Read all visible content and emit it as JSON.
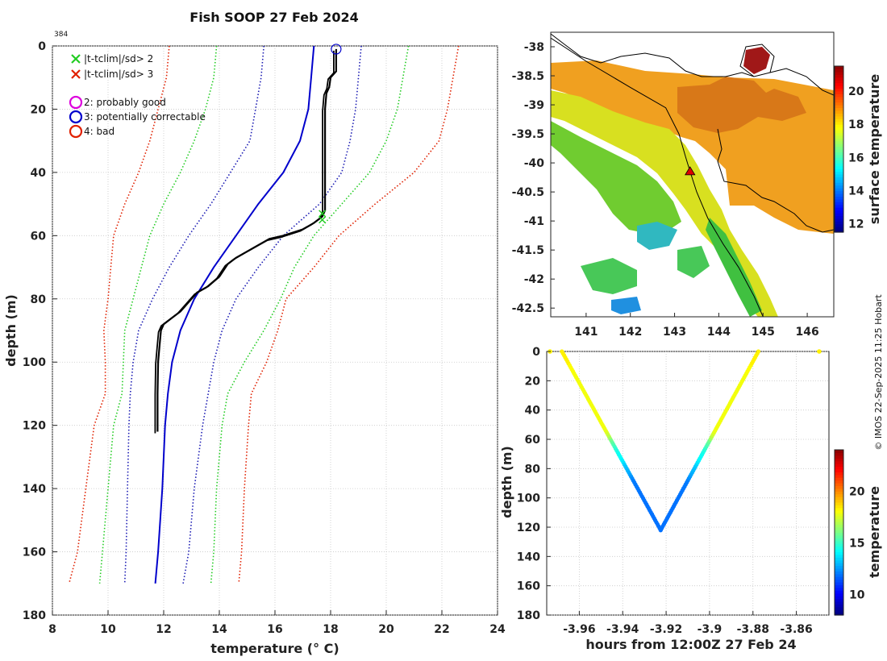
{
  "title": "Fish SOOP 27 Feb 2024",
  "profile_id": "384",
  "credit": "© IMOS 22-Sep-2025 11:25 Hobart",
  "colors": {
    "clim_mean": "#0000cc",
    "clim_2sd": "#1a1ab3",
    "clim_3sd": "#22cc22",
    "clim_4sd": "#e02000",
    "profile": "#000000"
  },
  "chart_data": [
    {
      "type": "line",
      "name": "temperature-profile",
      "xlabel": "temperature (° C)",
      "ylabel": "depth (m)",
      "xlim": [
        8,
        24
      ],
      "ylim": [
        180,
        0
      ],
      "xticks": [
        8,
        10,
        12,
        14,
        16,
        18,
        20,
        22,
        24
      ],
      "yticks": [
        0,
        20,
        40,
        60,
        80,
        100,
        120,
        140,
        160,
        180
      ],
      "legend": [
        {
          "marker": "x",
          "color": "#22cc22",
          "label": "|t-tclim|/sd> 2"
        },
        {
          "marker": "x",
          "color": "#e02000",
          "label": "|t-tclim|/sd> 3"
        },
        {
          "marker": "o",
          "color": "#dd00dd",
          "label": "2: probably good"
        },
        {
          "marker": "o",
          "color": "#0000cc",
          "label": "3: potentially correctable"
        },
        {
          "marker": "o",
          "color": "#e02000",
          "label": "4: bad"
        }
      ],
      "series": [
        {
          "name": "climatology mean",
          "style": "solid",
          "color": "#0000cc",
          "points": [
            [
              17.4,
              0
            ],
            [
              17.3,
              10
            ],
            [
              17.2,
              20
            ],
            [
              16.9,
              30
            ],
            [
              16.3,
              40
            ],
            [
              15.4,
              50
            ],
            [
              14.6,
              60
            ],
            [
              13.8,
              70
            ],
            [
              13.1,
              80
            ],
            [
              12.6,
              90
            ],
            [
              12.3,
              100
            ],
            [
              12.15,
              110
            ],
            [
              12.05,
              120
            ],
            [
              11.95,
              140
            ],
            [
              11.8,
              160
            ],
            [
              11.7,
              170
            ]
          ]
        },
        {
          "name": "mean - 1 sd",
          "style": "dotted",
          "color": "#1a1ab3",
          "points": [
            [
              15.6,
              0
            ],
            [
              15.5,
              10
            ],
            [
              15.3,
              20
            ],
            [
              15.1,
              30
            ],
            [
              14.4,
              40
            ],
            [
              13.7,
              50
            ],
            [
              12.9,
              60
            ],
            [
              12.2,
              70
            ],
            [
              11.6,
              80
            ],
            [
              11.1,
              90
            ],
            [
              10.9,
              100
            ],
            [
              10.8,
              110
            ],
            [
              10.75,
              120
            ],
            [
              10.7,
              140
            ],
            [
              10.65,
              160
            ],
            [
              10.6,
              170
            ]
          ]
        },
        {
          "name": "mean + 1 sd",
          "style": "dotted",
          "color": "#1a1ab3",
          "points": [
            [
              19.1,
              0
            ],
            [
              19.0,
              10
            ],
            [
              18.9,
              20
            ],
            [
              18.7,
              30
            ],
            [
              18.4,
              40
            ],
            [
              17.6,
              50
            ],
            [
              16.3,
              60
            ],
            [
              15.4,
              70
            ],
            [
              14.6,
              80
            ],
            [
              14.1,
              90
            ],
            [
              13.8,
              100
            ],
            [
              13.6,
              110
            ],
            [
              13.4,
              120
            ],
            [
              13.1,
              140
            ],
            [
              12.9,
              160
            ],
            [
              12.7,
              170
            ]
          ]
        },
        {
          "name": "mean - 2 sd",
          "style": "dotted",
          "color": "#22cc22",
          "points": [
            [
              13.9,
              0
            ],
            [
              13.8,
              10
            ],
            [
              13.5,
              20
            ],
            [
              13.1,
              30
            ],
            [
              12.6,
              40
            ],
            [
              12.0,
              50
            ],
            [
              11.5,
              60
            ],
            [
              11.2,
              70
            ],
            [
              10.9,
              80
            ],
            [
              10.6,
              90
            ],
            [
              10.55,
              100
            ],
            [
              10.5,
              110
            ],
            [
              10.2,
              120
            ],
            [
              10.0,
              140
            ],
            [
              9.8,
              160
            ],
            [
              9.7,
              170
            ]
          ]
        },
        {
          "name": "mean + 2 sd",
          "style": "dotted",
          "color": "#22cc22",
          "points": [
            [
              20.8,
              0
            ],
            [
              20.6,
              10
            ],
            [
              20.4,
              20
            ],
            [
              20.0,
              30
            ],
            [
              19.4,
              40
            ],
            [
              18.4,
              50
            ],
            [
              17.4,
              60
            ],
            [
              16.7,
              70
            ],
            [
              16.2,
              80
            ],
            [
              15.6,
              90
            ],
            [
              14.9,
              100
            ],
            [
              14.3,
              110
            ],
            [
              14.1,
              120
            ],
            [
              13.9,
              140
            ],
            [
              13.8,
              160
            ],
            [
              13.7,
              170
            ]
          ]
        },
        {
          "name": "mean - 3 sd",
          "style": "dotted",
          "color": "#e02000",
          "points": [
            [
              12.2,
              0
            ],
            [
              12.1,
              10
            ],
            [
              11.8,
              20
            ],
            [
              11.5,
              30
            ],
            [
              11.1,
              40
            ],
            [
              10.6,
              50
            ],
            [
              10.2,
              60
            ],
            [
              10.1,
              70
            ],
            [
              10.0,
              80
            ],
            [
              9.85,
              90
            ],
            [
              9.9,
              100
            ],
            [
              9.9,
              110
            ],
            [
              9.5,
              120
            ],
            [
              9.2,
              140
            ],
            [
              8.9,
              160
            ],
            [
              8.6,
              170
            ]
          ]
        },
        {
          "name": "mean + 3 sd",
          "style": "dotted",
          "color": "#e02000",
          "points": [
            [
              22.6,
              0
            ],
            [
              22.4,
              10
            ],
            [
              22.2,
              20
            ],
            [
              21.9,
              30
            ],
            [
              21.0,
              40
            ],
            [
              19.6,
              50
            ],
            [
              18.3,
              60
            ],
            [
              17.4,
              70
            ],
            [
              16.4,
              80
            ],
            [
              16.1,
              90
            ],
            [
              15.7,
              100
            ],
            [
              15.15,
              110
            ],
            [
              15.05,
              120
            ],
            [
              14.9,
              140
            ],
            [
              14.8,
              160
            ],
            [
              14.7,
              170
            ]
          ]
        },
        {
          "name": "observed profile",
          "style": "solid",
          "color": "#000000",
          "points": [
            [
              18.2,
              1
            ],
            [
              18.2,
              8
            ],
            [
              18.0,
              10
            ],
            [
              17.95,
              13
            ],
            [
              17.85,
              15
            ],
            [
              17.8,
              20
            ],
            [
              17.8,
              40
            ],
            [
              17.8,
              52
            ],
            [
              17.7,
              54
            ],
            [
              17.4,
              56
            ],
            [
              17.0,
              58
            ],
            [
              16.3,
              60
            ],
            [
              15.8,
              61
            ],
            [
              15.4,
              63
            ],
            [
              15.0,
              65
            ],
            [
              14.6,
              67
            ],
            [
              14.3,
              69
            ],
            [
              14.0,
              73
            ],
            [
              13.6,
              76
            ],
            [
              13.2,
              78
            ],
            [
              12.9,
              81
            ],
            [
              12.6,
              84
            ],
            [
              12.3,
              86
            ],
            [
              12.0,
              88
            ],
            [
              11.9,
              90
            ],
            [
              11.85,
              95
            ],
            [
              11.8,
              100
            ],
            [
              11.78,
              110
            ],
            [
              11.78,
              122
            ]
          ]
        }
      ],
      "flags": [
        {
          "marker": "o",
          "color": "#0000cc",
          "x": 18.2,
          "y": 1
        },
        {
          "marker": "x",
          "color": "#22cc22",
          "x": 17.7,
          "y": 53
        },
        {
          "marker": "x",
          "color": "#22cc22",
          "x": 17.7,
          "y": 55
        }
      ]
    },
    {
      "type": "heatmap",
      "name": "surface-temperature-map",
      "xlim": [
        140.2,
        146.6
      ],
      "ylim": [
        -42.65,
        -37.75
      ],
      "xticks": [
        141,
        142,
        143,
        144,
        145,
        146
      ],
      "yticks": [
        -38,
        -38.5,
        -39,
        -39.5,
        -40,
        -40.5,
        -41,
        -41.5,
        -42,
        -42.5
      ],
      "ytick_labels": [
        "-38",
        "-38.5",
        "-39",
        "-39.5",
        "-40",
        "-40.5",
        "-41",
        "-41.5",
        "-42",
        "-42.5"
      ],
      "colorbar": {
        "label": "surface temperature",
        "range": [
          11.5,
          21.5
        ],
        "ticks": [
          12,
          14,
          16,
          18,
          20
        ]
      },
      "profile_location": {
        "lon": 143.35,
        "lat": -40.15,
        "marker": "triangle",
        "color": "#dd0000"
      },
      "ship_track": [
        [
          140.2,
          -37.85
        ],
        [
          141.0,
          -38.25
        ],
        [
          142.0,
          -38.7
        ],
        [
          142.8,
          -39.05
        ],
        [
          143.1,
          -39.5
        ],
        [
          143.25,
          -39.9
        ],
        [
          143.35,
          -40.15
        ],
        [
          143.5,
          -40.5
        ],
        [
          143.75,
          -40.95
        ],
        [
          144.1,
          -41.4
        ],
        [
          144.45,
          -41.8
        ],
        [
          144.8,
          -42.3
        ],
        [
          145.0,
          -42.65
        ]
      ]
    },
    {
      "type": "scatter",
      "name": "depth-time-profile",
      "xlabel": "hours from 12:00Z 27 Feb 24",
      "ylabel": "depth (m)",
      "xlim": [
        -3.975,
        -3.845
      ],
      "ylim": [
        180,
        0
      ],
      "xticks": [
        -3.96,
        -3.94,
        -3.92,
        -3.9,
        -3.88,
        -3.86
      ],
      "xtick_labels": [
        "-3.96",
        "-3.94",
        "-3.92",
        "-3.9",
        "-3.88",
        "-3.86"
      ],
      "yticks": [
        0,
        20,
        40,
        60,
        80,
        100,
        120,
        140,
        160,
        180
      ],
      "colorbar": {
        "label": "temperature",
        "range": [
          8,
          24
        ],
        "ticks": [
          10,
          15,
          20
        ]
      },
      "descent": {
        "t_start": -3.968,
        "t_end": -3.9225,
        "max_depth": 122
      },
      "ascent": {
        "t_start": -3.9225,
        "t_end": -3.8775
      },
      "surface_points": [
        [
          -3.9735,
          0
        ],
        [
          -3.8495,
          0
        ]
      ]
    }
  ]
}
